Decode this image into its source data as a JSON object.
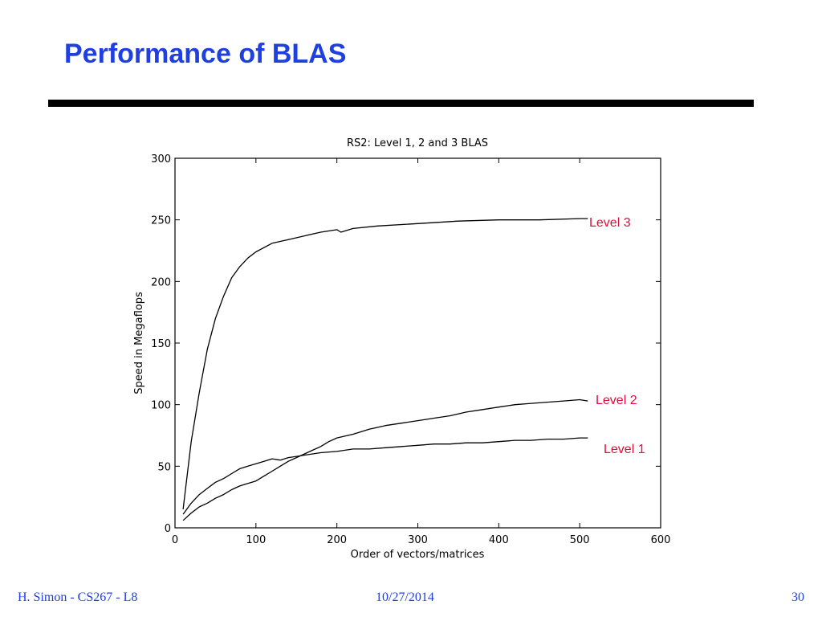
{
  "slide": {
    "title": "Performance of BLAS",
    "title_color": "#1f3fe0",
    "footer_left": "H. Simon - CS267 - L8",
    "footer_center": "10/27/2014",
    "footer_right": "30",
    "footer_color": "#1f3fe0"
  },
  "chart_data": {
    "type": "line",
    "title": "RS2: Level 1, 2 and 3 BLAS",
    "xlabel": "Order of vectors/matrices",
    "ylabel": "Speed in Megaflops",
    "xlim": [
      0,
      600
    ],
    "ylim": [
      0,
      300
    ],
    "xticks": [
      0,
      100,
      200,
      300,
      400,
      500,
      600
    ],
    "yticks": [
      0,
      50,
      100,
      150,
      200,
      250,
      300
    ],
    "grid": false,
    "annotation_color": "#e0103c",
    "line_color": "#000000",
    "series": [
      {
        "name": "Level 3",
        "x": [
          10,
          20,
          30,
          40,
          50,
          60,
          70,
          80,
          90,
          100,
          120,
          140,
          160,
          180,
          200,
          205,
          220,
          250,
          300,
          350,
          400,
          450,
          500,
          510
        ],
        "y": [
          15,
          70,
          110,
          145,
          170,
          188,
          203,
          212,
          219,
          224,
          231,
          234,
          237,
          240,
          242,
          240,
          243,
          245,
          247,
          249,
          250,
          250,
          251,
          251
        ]
      },
      {
        "name": "Level 2",
        "x": [
          10,
          20,
          30,
          40,
          50,
          60,
          70,
          80,
          90,
          100,
          110,
          120,
          130,
          140,
          150,
          160,
          170,
          180,
          190,
          200,
          220,
          240,
          260,
          280,
          300,
          320,
          340,
          360,
          380,
          400,
          420,
          440,
          460,
          480,
          500,
          510
        ],
        "y": [
          6,
          12,
          17,
          20,
          24,
          27,
          31,
          34,
          36,
          38,
          42,
          46,
          50,
          54,
          57,
          60,
          63,
          66,
          70,
          73,
          76,
          80,
          83,
          85,
          87,
          89,
          91,
          94,
          96,
          98,
          100,
          101,
          102,
          103,
          104,
          103
        ]
      },
      {
        "name": "Level 1",
        "x": [
          10,
          20,
          30,
          40,
          50,
          60,
          70,
          80,
          90,
          100,
          110,
          120,
          130,
          140,
          150,
          160,
          170,
          180,
          200,
          220,
          240,
          260,
          280,
          300,
          320,
          340,
          360,
          380,
          400,
          420,
          440,
          460,
          480,
          500,
          510
        ],
        "y": [
          11,
          20,
          27,
          32,
          37,
          40,
          44,
          48,
          50,
          52,
          54,
          56,
          55,
          57,
          58,
          59,
          60,
          61,
          62,
          64,
          64,
          65,
          66,
          67,
          68,
          68,
          69,
          69,
          70,
          71,
          71,
          72,
          72,
          73,
          73
        ]
      }
    ]
  }
}
